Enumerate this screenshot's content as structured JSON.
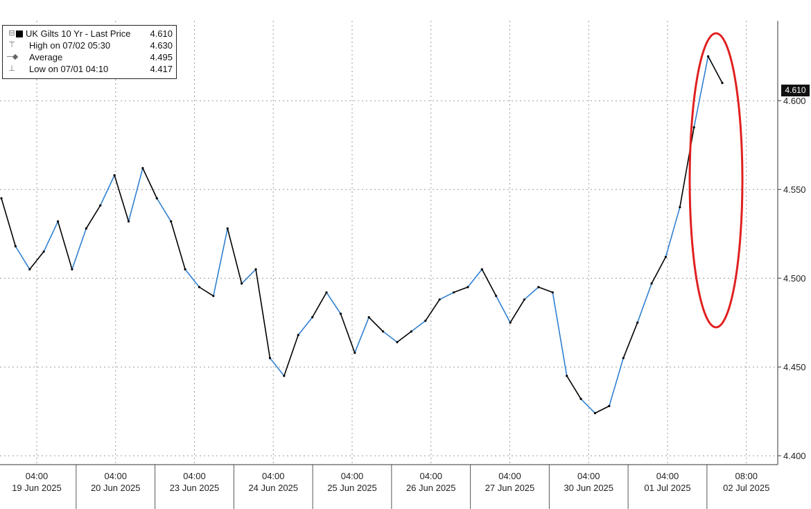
{
  "legend": {
    "title": "UK Gilts 10 Yr - Last Price",
    "last": "4.610",
    "high_label": "High on 07/02 05:30",
    "high_value": "4.630",
    "avg_label": "Average",
    "avg_value": "4.495",
    "low_label": "Low on 07/01 04:10",
    "low_value": "4.417"
  },
  "last_badge": "4.610",
  "colors": {
    "line": "#000000",
    "line_alt": "#2f7fd1",
    "highlight": "#e02020",
    "grid": "#9a9a9a"
  },
  "chart_data": {
    "type": "line",
    "series": [
      {
        "name": "UK Gilts 10 Yr - Last Price",
        "x": [
          "2025-06-19 00:00",
          "2025-06-19 04:00",
          "2025-06-19 08:00",
          "2025-06-19 12:00",
          "2025-06-19 16:00",
          "2025-06-20 00:00",
          "2025-06-20 04:00",
          "2025-06-20 08:00",
          "2025-06-20 12:00",
          "2025-06-20 16:00",
          "2025-06-23 00:00",
          "2025-06-23 04:00",
          "2025-06-23 08:00",
          "2025-06-23 12:00",
          "2025-06-23 16:00",
          "2025-06-24 00:00",
          "2025-06-24 04:00",
          "2025-06-24 08:00",
          "2025-06-24 12:00",
          "2025-06-24 16:00",
          "2025-06-25 00:00",
          "2025-06-25 04:00",
          "2025-06-25 08:00",
          "2025-06-25 12:00",
          "2025-06-25 16:00",
          "2025-06-26 00:00",
          "2025-06-26 04:00",
          "2025-06-26 08:00",
          "2025-06-26 12:00",
          "2025-06-26 16:00",
          "2025-06-27 00:00",
          "2025-06-27 04:00",
          "2025-06-27 08:00",
          "2025-06-27 12:00",
          "2025-06-27 16:00",
          "2025-06-30 00:00",
          "2025-06-30 04:00",
          "2025-06-30 08:00",
          "2025-06-30 12:00",
          "2025-06-30 16:00",
          "2025-07-01 00:00",
          "2025-07-01 04:00",
          "2025-07-01 08:00",
          "2025-07-01 12:00",
          "2025-07-01 16:00",
          "2025-07-02 00:00",
          "2025-07-02 02:00",
          "2025-07-02 03:00",
          "2025-07-02 04:00",
          "2025-07-02 05:00",
          "2025-07-02 05:30",
          "2025-07-02 06:00"
        ],
        "y": [
          4.545,
          4.518,
          4.505,
          4.515,
          4.532,
          4.505,
          4.528,
          4.541,
          4.558,
          4.532,
          4.562,
          4.545,
          4.532,
          4.505,
          4.495,
          4.49,
          4.528,
          4.497,
          4.505,
          4.455,
          4.445,
          4.468,
          4.478,
          4.492,
          4.48,
          4.458,
          4.478,
          4.47,
          4.464,
          4.47,
          4.476,
          4.488,
          4.492,
          4.495,
          4.505,
          4.49,
          4.475,
          4.488,
          4.495,
          4.492,
          4.445,
          4.432,
          4.424,
          4.428,
          4.455,
          4.475,
          4.497,
          4.512,
          4.54,
          4.585,
          4.625,
          4.61
        ]
      }
    ],
    "x_ticks": [
      {
        "time": "04:00",
        "date": "19 Jun 2025"
      },
      {
        "time": "04:00",
        "date": "20 Jun 2025"
      },
      {
        "time": "04:00",
        "date": "23 Jun 2025"
      },
      {
        "time": "04:00",
        "date": "24 Jun 2025"
      },
      {
        "time": "04:00",
        "date": "25 Jun 2025"
      },
      {
        "time": "04:00",
        "date": "26 Jun 2025"
      },
      {
        "time": "04:00",
        "date": "27 Jun 2025"
      },
      {
        "time": "04:00",
        "date": "30 Jun 2025"
      },
      {
        "time": "04:00",
        "date": "01 Jul 2025"
      },
      {
        "time": "08:00",
        "date": "02 Jul 2025"
      }
    ],
    "y_ticks": [
      "4.400",
      "4.450",
      "4.500",
      "4.550",
      "4.600"
    ],
    "ylim": [
      4.395,
      4.645
    ],
    "grid": true,
    "legend_position": "top-left",
    "annotation": "red ellipse highlighting the 02 Jul 2025 spike"
  }
}
